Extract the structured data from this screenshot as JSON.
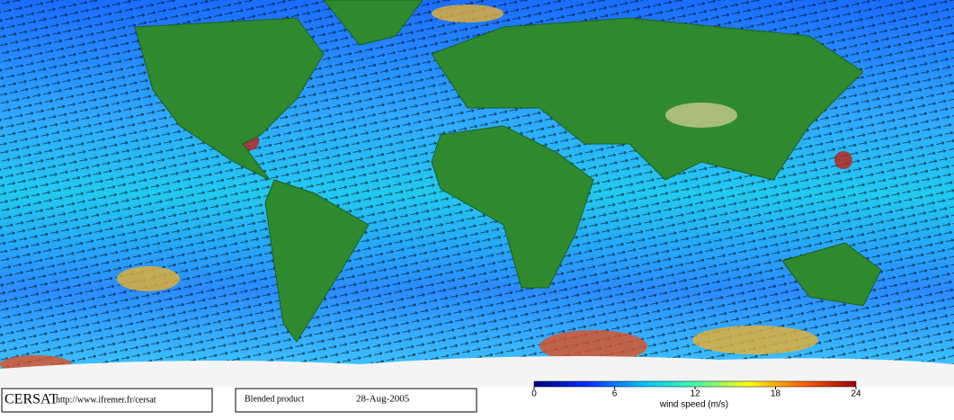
{
  "footer": {
    "logo": "CERSAT",
    "url": "http://www.ifremer.fr/cersat",
    "product": "Blended product",
    "date": "28-Aug-2005"
  },
  "colorbar": {
    "label": "wind speed (m/s)",
    "lim": [
      0,
      24
    ],
    "ticks": [
      0,
      6,
      12,
      18,
      24
    ],
    "colors": [
      "#000080",
      "#0030ff",
      "#00c0ff",
      "#40ffb0",
      "#ffff00",
      "#ff6000",
      "#a00000"
    ]
  }
}
